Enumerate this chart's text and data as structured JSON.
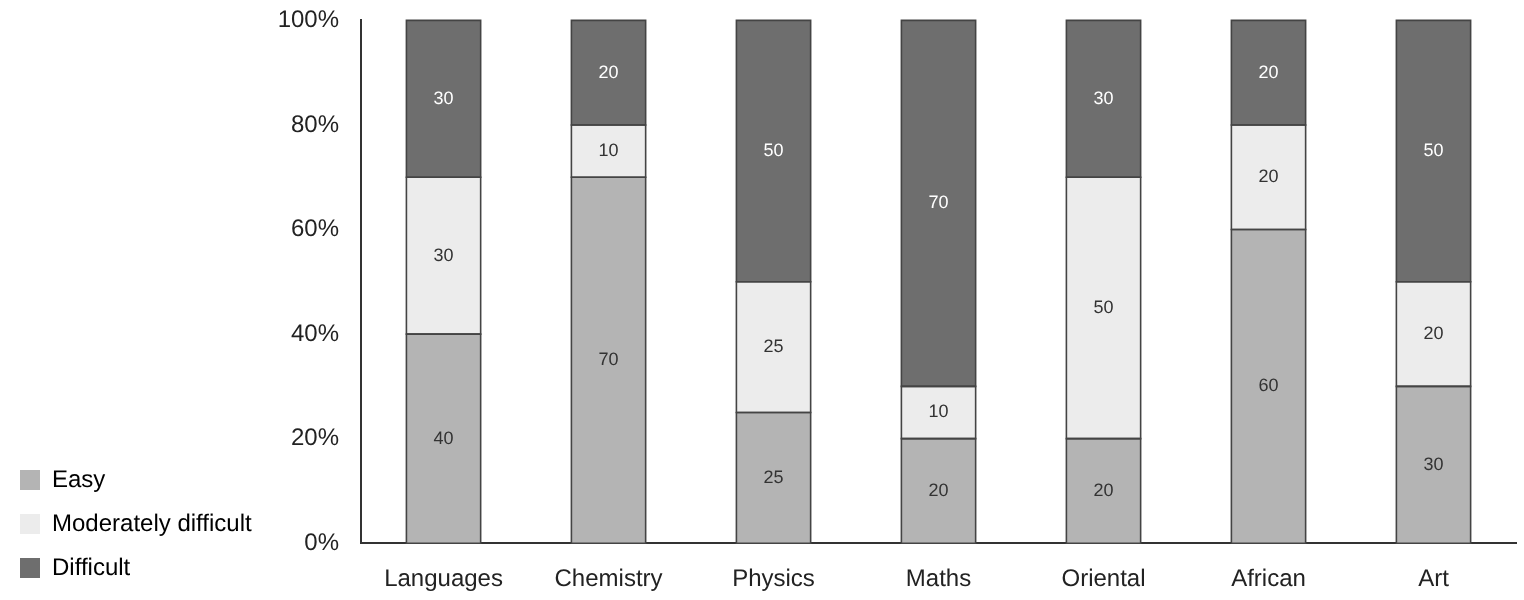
{
  "chart_data": {
    "type": "bar",
    "stacked": true,
    "categories": [
      "Languages",
      "Chemistry",
      "Physics",
      "Maths",
      "Oriental",
      "African",
      "Art"
    ],
    "series": [
      {
        "name": "Easy",
        "color": "#b4b4b4",
        "values": [
          40,
          70,
          25,
          20,
          20,
          60,
          30
        ]
      },
      {
        "name": "Moderately difficult",
        "color": "#ececec",
        "values": [
          30,
          10,
          25,
          10,
          50,
          20,
          20
        ]
      },
      {
        "name": "Difficult",
        "color": "#6e6e6e",
        "values": [
          30,
          20,
          50,
          70,
          30,
          20,
          50
        ]
      }
    ],
    "ylim": [
      0,
      100
    ],
    "yticks": [
      {
        "value": 0,
        "label": "0%"
      },
      {
        "value": 20,
        "label": "20%"
      },
      {
        "value": 40,
        "label": "40%"
      },
      {
        "value": 60,
        "label": "60%"
      },
      {
        "value": 80,
        "label": "80%"
      },
      {
        "value": 100,
        "label": "100%"
      }
    ],
    "data_labels": true,
    "legend": "bottom left",
    "grid": false
  }
}
